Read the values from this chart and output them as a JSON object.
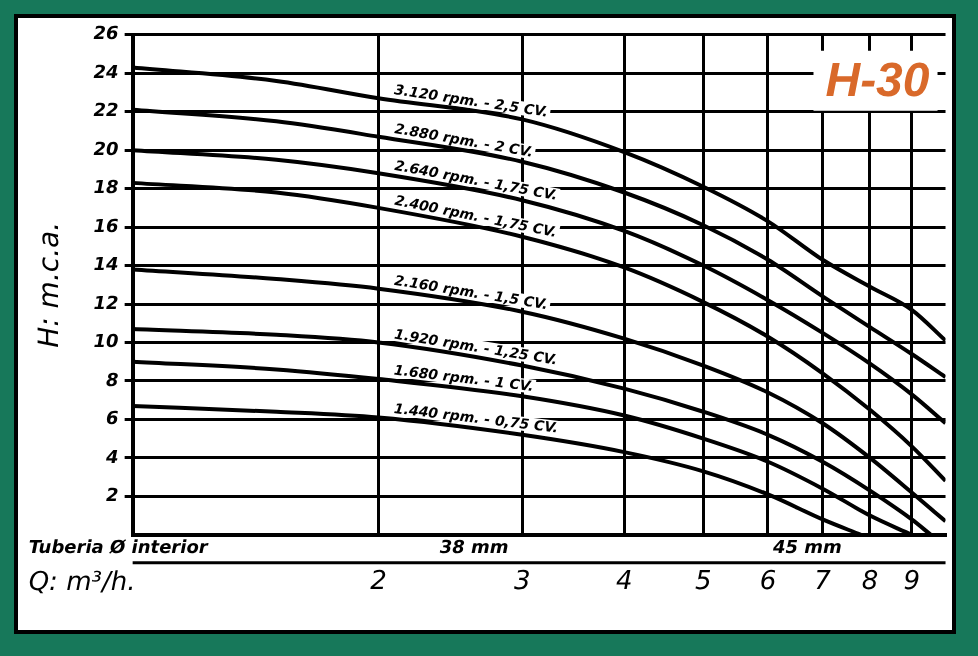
{
  "chart_data": {
    "type": "line",
    "title": "H-30",
    "xlabel": "Q: m³/h.",
    "ylabel": "H: m.c.a.",
    "annotations": [
      "Tuberia Ø interior",
      "38 mm",
      "45 mm"
    ],
    "log": "x",
    "xlim": [
      1,
      9.9
    ],
    "xticks": [
      2,
      3,
      4,
      5,
      6,
      7,
      8,
      9
    ],
    "ylim": [
      0,
      26
    ],
    "yticks": [
      2,
      4,
      6,
      8,
      10,
      12,
      14,
      16,
      18,
      20,
      22,
      24,
      26
    ],
    "grid": true,
    "legend": false,
    "marker": "none",
    "line_style": "solid",
    "series": [
      {
        "name": "3.120 rpm. - 2,5 CV.",
        "color": "#000000",
        "x": [
          1,
          1.5,
          2,
          3,
          4,
          5,
          6,
          7,
          8,
          9,
          9.9
        ],
        "values": [
          24.3,
          23.6,
          22.7,
          21.6,
          19.9,
          18.1,
          16.3,
          14.3,
          12.9,
          11.7,
          10.1
        ]
      },
      {
        "name": "2.880 rpm. - 2 CV.",
        "color": "#000000",
        "x": [
          1,
          1.5,
          2,
          3,
          4,
          5,
          6,
          7,
          8,
          9,
          9.9
        ],
        "values": [
          22.1,
          21.5,
          20.7,
          19.4,
          17.8,
          16.1,
          14.3,
          12.4,
          10.8,
          9.4,
          8.2
        ]
      },
      {
        "name": "2.640 rpm. - 1,75 CV.",
        "color": "#000000",
        "x": [
          1,
          1.5,
          2,
          3,
          4,
          5,
          6,
          7,
          8,
          9,
          9.9
        ],
        "values": [
          20.0,
          19.5,
          18.8,
          17.4,
          15.8,
          14.0,
          12.2,
          10.5,
          8.9,
          7.3,
          5.8
        ]
      },
      {
        "name": "2.400 rpm. - 1,75 CV.",
        "color": "#000000",
        "x": [
          1,
          1.5,
          2,
          3,
          4,
          5,
          6,
          7,
          8,
          9,
          9.9
        ],
        "values": [
          18.3,
          17.8,
          17.0,
          15.5,
          13.9,
          12.1,
          10.3,
          8.4,
          6.5,
          4.6,
          2.8
        ]
      },
      {
        "name": "2.160 rpm. - 1,5 CV.",
        "color": "#000000",
        "x": [
          1,
          1.5,
          2,
          3,
          4,
          5,
          6,
          7,
          8,
          9,
          9.9
        ],
        "values": [
          13.8,
          13.3,
          12.8,
          11.6,
          10.2,
          8.8,
          7.4,
          5.8,
          4.0,
          2.2,
          0.7
        ]
      },
      {
        "name": "1.920 rpm. - 1,25 CV.",
        "color": "#000000",
        "x": [
          1,
          1.5,
          2,
          3,
          4,
          5,
          6,
          7,
          8,
          9,
          9.5
        ],
        "values": [
          10.7,
          10.4,
          10.0,
          8.8,
          7.6,
          6.4,
          5.2,
          3.8,
          2.3,
          0.8,
          0
        ]
      },
      {
        "name": "1.680 rpm. - 1 CV.",
        "color": "#000000",
        "x": [
          1,
          1.5,
          2,
          3,
          4,
          5,
          6,
          7,
          8,
          9
        ],
        "values": [
          9.0,
          8.6,
          8.1,
          7.2,
          6.2,
          5.0,
          3.8,
          2.4,
          1.0,
          0
        ]
      },
      {
        "name": "1.440 rpm. - 0,75 CV.",
        "color": "#000000",
        "x": [
          1,
          1.5,
          2,
          3,
          4,
          5,
          6,
          7,
          7.8
        ],
        "values": [
          6.7,
          6.4,
          6.1,
          5.2,
          4.3,
          3.3,
          2.1,
          0.8,
          0
        ]
      }
    ]
  }
}
